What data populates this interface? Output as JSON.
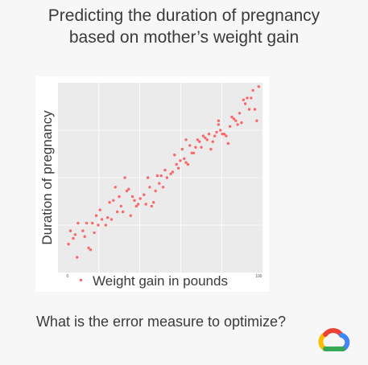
{
  "slide": {
    "title_line1": "Predicting the duration of pregnancy",
    "title_line2": "based on mother’s weight gain",
    "question": "What is the error measure to optimize?",
    "logo_icon": "google-cloud-logo-icon"
  },
  "chart_data": {
    "type": "scatter",
    "title": "",
    "xlabel": "Weight gain in pounds",
    "ylabel": "Duration of pregnancy",
    "xlim": [
      -5,
      102
    ],
    "ylim": [
      0,
      100
    ],
    "x_ticks": [
      {
        "value": 0,
        "label": "0"
      },
      {
        "value": 100,
        "label": "100"
      }
    ],
    "grid": true,
    "legend": "none",
    "point_color": "#f8696b",
    "panel_color": "#ebebeb",
    "grid_color": "#ffffff",
    "series": [
      {
        "x": [
          0.5,
          1.5,
          3,
          5,
          5.5,
          7,
          8,
          9,
          10,
          11,
          12,
          13,
          14,
          15,
          16,
          17,
          18,
          20,
          21,
          22,
          23,
          24,
          26,
          27,
          28,
          29,
          30,
          31,
          32,
          33,
          34,
          35,
          36,
          37,
          38,
          40,
          41,
          42,
          44,
          45,
          46,
          47,
          48,
          49,
          50,
          51,
          52,
          54,
          55,
          56,
          58,
          59,
          60,
          61,
          62,
          63,
          64,
          65,
          66,
          67,
          68,
          69,
          70,
          71,
          72,
          73,
          74,
          75,
          76,
          77,
          78,
          79,
          80,
          81,
          82,
          83,
          84,
          85,
          86,
          87,
          88,
          89,
          90,
          91,
          92,
          93,
          94,
          95,
          96,
          97,
          98,
          99,
          100,
          25,
          43,
          57,
          4,
          62,
          79
        ],
        "y": [
          15,
          22,
          18,
          8,
          26,
          -4,
          22,
          19,
          26,
          13,
          12,
          26,
          21,
          30,
          25,
          33,
          28,
          25,
          29,
          37,
          28,
          38,
          32,
          40,
          35,
          32,
          50,
          43,
          44,
          30,
          40,
          38,
          35,
          36,
          39,
          41,
          36,
          50,
          35,
          37,
          43,
          51,
          47,
          51,
          45,
          54,
          50,
          52,
          53,
          62,
          55,
          59,
          65,
          60,
          58,
          57,
          67,
          63,
          63,
          66,
          70,
          69,
          66,
          72,
          71,
          70,
          73,
          65,
          69,
          72,
          74,
          80,
          75,
          73,
          73,
          72,
          68,
          77,
          82,
          81,
          80,
          78,
          84,
          79,
          91,
          89,
          92,
          86,
          92,
          96,
          86,
          80,
          98,
          45,
          45,
          57,
          20,
          70,
          78
        ]
      }
    ]
  }
}
